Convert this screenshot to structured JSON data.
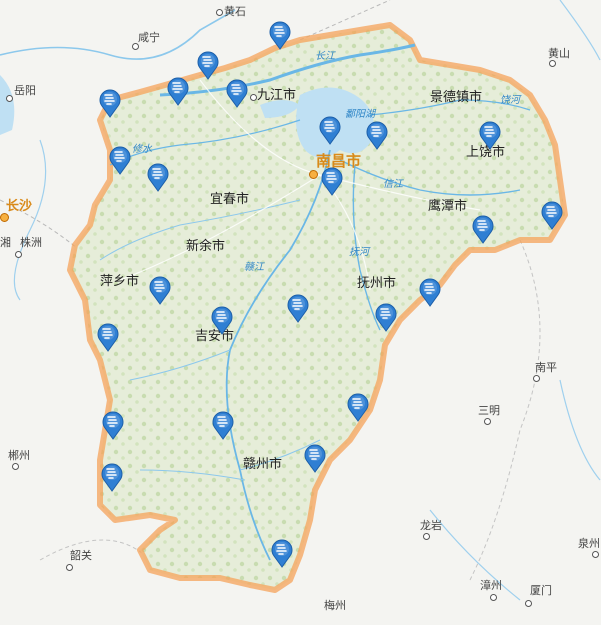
{
  "colors": {
    "province_fill": "#e4ecd9",
    "province_border": "#f5a35a",
    "water": "#bfe0f3",
    "river": "#6ab7e6",
    "pin": "#2f7fd3",
    "pin_dark": "#1d5fa8",
    "outside": "#f4f4f1"
  },
  "labels": {
    "huangshi": "黄石",
    "xianning": "咸宁",
    "yueyang": "岳阳",
    "changsha": "长沙",
    "zhuzhou": "株洲",
    "xiang": "湘",
    "huangshan": "黄山",
    "nanping": "南平",
    "sanming": "三明",
    "chenzhou": "郴州",
    "shaoguan": "韶关",
    "longyan": "龙岩",
    "quanzhou": "泉州",
    "zhangzhou": "漳州",
    "xiamen": "厦门",
    "meizhou": "梅州",
    "jiujiang": "九江市",
    "nanchang": "南昌市",
    "jingdezhen": "景德镇市",
    "shangrao": "上饶市",
    "yingtan": "鹰潭市",
    "yichun": "宜春市",
    "xinyu": "新余市",
    "pingxiang": "萍乡市",
    "fuzhou": "抚州市",
    "jian": "吉安市",
    "ganzhou": "赣州市",
    "changjiang": "长江",
    "poyanghu": "鄱阳湖",
    "raohe": "饶河",
    "xiushui": "修水",
    "xinjiang": "信江",
    "fuhe": "抚河",
    "ganjiang": "赣江"
  },
  "stations": [
    {
      "name": "station-marker"
    },
    {
      "name": "station-marker"
    },
    {
      "name": "station-marker"
    },
    {
      "name": "station-marker"
    },
    {
      "name": "station-marker"
    },
    {
      "name": "station-marker"
    },
    {
      "name": "station-marker"
    },
    {
      "name": "station-marker"
    },
    {
      "name": "station-marker"
    },
    {
      "name": "station-marker"
    },
    {
      "name": "station-marker"
    },
    {
      "name": "station-marker"
    },
    {
      "name": "station-marker"
    },
    {
      "name": "station-marker"
    },
    {
      "name": "station-marker"
    },
    {
      "name": "station-marker"
    },
    {
      "name": "station-marker"
    },
    {
      "name": "station-marker"
    },
    {
      "name": "station-marker"
    },
    {
      "name": "station-marker"
    },
    {
      "name": "station-marker"
    },
    {
      "name": "station-marker"
    },
    {
      "name": "station-marker"
    },
    {
      "name": "station-marker"
    },
    {
      "name": "station-marker"
    }
  ]
}
